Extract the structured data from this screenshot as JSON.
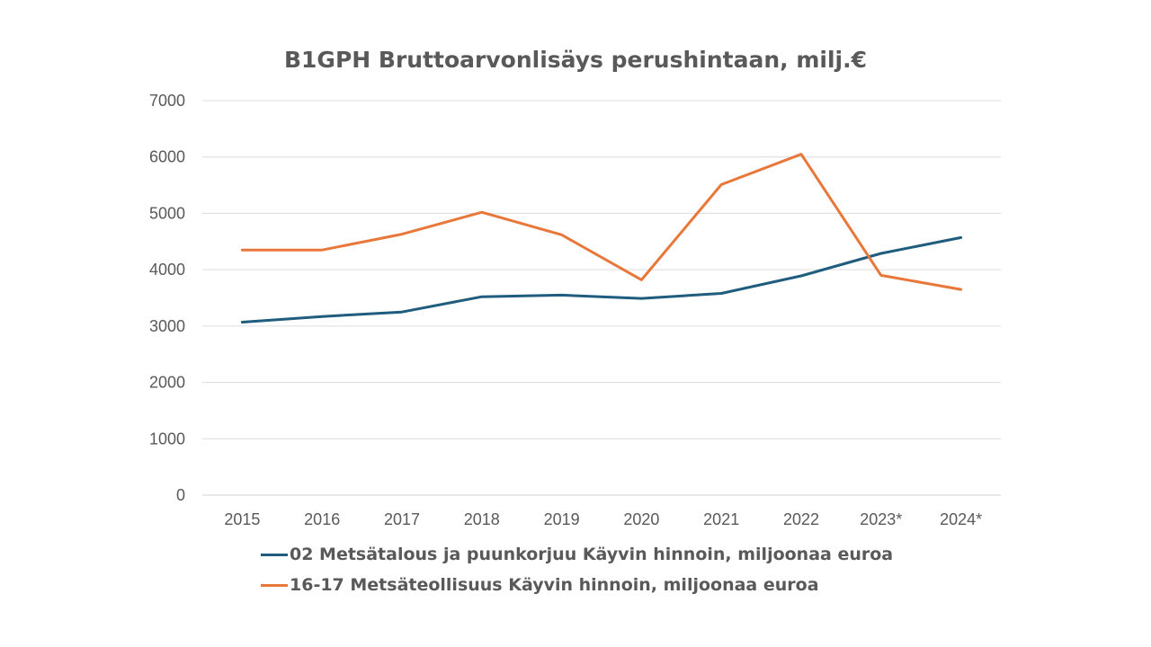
{
  "chart_data": {
    "type": "line",
    "title": "B1GPH Bruttoarvonlisäys perushintaan, milj.€",
    "categories": [
      "2015",
      "2016",
      "2017",
      "2018",
      "2019",
      "2020",
      "2021",
      "2022",
      "2023*",
      "2024*"
    ],
    "ylim": [
      0,
      7000
    ],
    "yticks": [
      "0",
      "1000",
      "2000",
      "3000",
      "4000",
      "5000",
      "6000",
      "7000"
    ],
    "ytick_values": [
      0,
      1000,
      2000,
      3000,
      4000,
      5000,
      6000,
      7000
    ],
    "grid": true,
    "legend_position": "bottom",
    "xlabel": "",
    "ylabel": "",
    "series": [
      {
        "name": "02 Metsätalous ja puunkorjuu Käyvin hinnoin, miljoonaa euroa",
        "color": "#1f5c7d",
        "values": [
          3070,
          3170,
          3250,
          3520,
          3550,
          3490,
          3580,
          3890,
          4290,
          4570
        ]
      },
      {
        "name": "16-17 Metsäteollisuus Käyvin hinnoin, miljoonaa euroa",
        "color": "#e8773a",
        "values": [
          4350,
          4350,
          4630,
          5020,
          4620,
          3820,
          5510,
          6050,
          3900,
          3650
        ]
      }
    ]
  }
}
